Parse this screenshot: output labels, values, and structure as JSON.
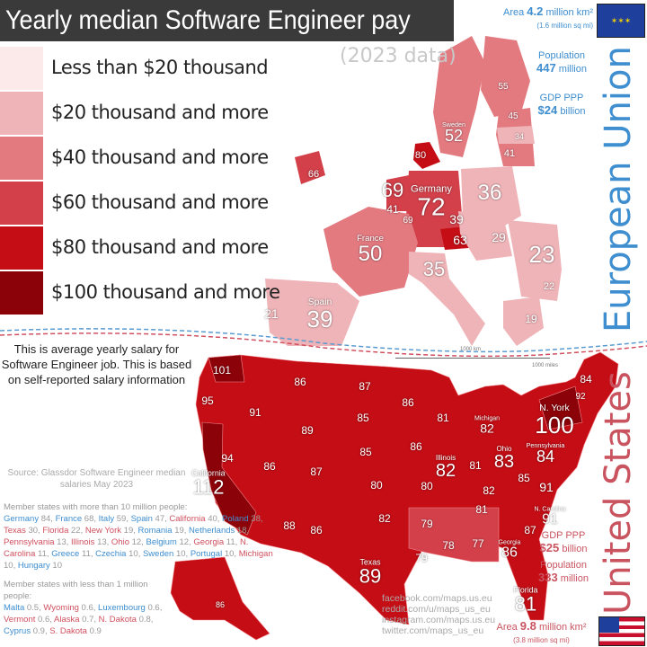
{
  "title": "Yearly median Software Engineer pay",
  "subtitle": "(2023 data)",
  "legend": [
    {
      "label": "Less than $20 thousand",
      "color": "#fce9ea"
    },
    {
      "label": "$20 thousand and more",
      "color": "#efb4b8"
    },
    {
      "label": "$40 thousand and more",
      "color": "#e27a80"
    },
    {
      "label": "$60 thousand and more",
      "color": "#d3404a"
    },
    {
      "label": "$80 thousand and more",
      "color": "#c50d15"
    },
    {
      "label": "$100 thousand and more",
      "color": "#8c0209"
    }
  ],
  "note": "This is average yearly salary for Software Engineer job. This is based on self-reported salary information",
  "source": "Source: Glassdor Software Engineer median salaries May 2023",
  "large_states": {
    "heading": "Member states with more than 10 million people:",
    "items": [
      {
        "name": "Germany",
        "value": "84",
        "side": "eu"
      },
      {
        "name": "France",
        "value": "68",
        "side": "eu"
      },
      {
        "name": "Italy",
        "value": "59",
        "side": "eu"
      },
      {
        "name": "Spain",
        "value": "47",
        "side": "eu"
      },
      {
        "name": "California",
        "value": "40",
        "side": "us"
      },
      {
        "name": "Poland",
        "value": "38",
        "side": "eu"
      },
      {
        "name": "Texas",
        "value": "30",
        "side": "us"
      },
      {
        "name": "Florida",
        "value": "22",
        "side": "us"
      },
      {
        "name": "New York",
        "value": "19",
        "side": "us"
      },
      {
        "name": "Romania",
        "value": "19",
        "side": "eu"
      },
      {
        "name": "Netherlands",
        "value": "18",
        "side": "eu"
      },
      {
        "name": "Pennsylvania",
        "value": "13",
        "side": "us"
      },
      {
        "name": "Illinois",
        "value": "13",
        "side": "us"
      },
      {
        "name": "Ohio",
        "value": "12",
        "side": "us"
      },
      {
        "name": "Belgium",
        "value": "12",
        "side": "eu"
      },
      {
        "name": "Georgia",
        "value": "11",
        "side": "us"
      },
      {
        "name": "N. Carolina",
        "value": "11",
        "side": "us"
      },
      {
        "name": "Greece",
        "value": "11",
        "side": "eu"
      },
      {
        "name": "Czechia",
        "value": "10",
        "side": "eu"
      },
      {
        "name": "Sweden",
        "value": "10",
        "side": "eu"
      },
      {
        "name": "Portugal",
        "value": "10",
        "side": "eu"
      },
      {
        "name": "Michigan",
        "value": "10",
        "side": "us"
      },
      {
        "name": "Hungary",
        "value": "10",
        "side": "eu"
      }
    ]
  },
  "small_states": {
    "heading": "Member states with less than 1 million people:",
    "items": [
      {
        "name": "Malta",
        "value": "0.5",
        "side": "eu"
      },
      {
        "name": "Wyoming",
        "value": "0.6",
        "side": "us"
      },
      {
        "name": "Luxembourg",
        "value": "0.6",
        "side": "eu"
      },
      {
        "name": "Vermont",
        "value": "0.6",
        "side": "us"
      },
      {
        "name": "Alaska",
        "value": "0.7",
        "side": "us"
      },
      {
        "name": "N. Dakota",
        "value": "0.8",
        "side": "us"
      },
      {
        "name": "Cyprus",
        "value": "0.9",
        "side": "eu"
      },
      {
        "name": "S. Dakota",
        "value": "0.9",
        "side": "us"
      }
    ]
  },
  "eu": {
    "name": "European Union",
    "area_label": "Area",
    "area_value": "4.2",
    "area_unit": "million km²",
    "area_sub": "(1.6 million sq mi)",
    "population_label": "Population",
    "population_value": "447",
    "population_unit": "million",
    "gdp_label": "GDP PPP",
    "gdp_value": "$24",
    "gdp_unit": "billion",
    "color": "#3e8ed0"
  },
  "us": {
    "name": "United States",
    "area_label": "Area",
    "area_value": "9.8",
    "area_unit": "million km²",
    "area_sub": "(3.8 million sq mi)",
    "population_label": "Population",
    "population_value": "333",
    "population_unit": "million",
    "gdp_label": "GDP PPP",
    "gdp_value": "$25",
    "gdp_unit": "billion",
    "color": "#c95460"
  },
  "scale": {
    "km": "1000 km",
    "miles": "1000 miles"
  },
  "social": [
    "facebook.com/maps.us.eu",
    "reddit.com/u/maps_us_eu",
    "instagram.com/maps.us.eu",
    "twitter.com/maps_us_eu"
  ],
  "eu_regions": [
    {
      "name": "",
      "value": "55"
    },
    {
      "name": "Sweden",
      "value": "52"
    },
    {
      "name": "",
      "value": "45"
    },
    {
      "name": "",
      "value": "34"
    },
    {
      "name": "",
      "value": "41"
    },
    {
      "name": "",
      "value": "80"
    },
    {
      "name": "",
      "value": "66"
    },
    {
      "name": "",
      "value": "69"
    },
    {
      "name": "Germany",
      "value": "72"
    },
    {
      "name": "",
      "value": "41"
    },
    {
      "name": "",
      "value": "69"
    },
    {
      "name": "",
      "value": "36"
    },
    {
      "name": "France",
      "value": "50"
    },
    {
      "name": "",
      "value": "39"
    },
    {
      "name": "",
      "value": "63"
    },
    {
      "name": "",
      "value": "29"
    },
    {
      "name": "",
      "value": "23"
    },
    {
      "name": "",
      "value": "35"
    },
    {
      "name": "Spain",
      "value": "39"
    },
    {
      "name": "",
      "value": "21"
    },
    {
      "name": "",
      "value": "19"
    },
    {
      "name": "",
      "value": "22"
    }
  ],
  "us_regions": [
    {
      "name": "",
      "value": "101"
    },
    {
      "name": "",
      "value": "95"
    },
    {
      "name": "",
      "value": "91"
    },
    {
      "name": "",
      "value": "86"
    },
    {
      "name": "",
      "value": "87"
    },
    {
      "name": "",
      "value": "86"
    },
    {
      "name": "",
      "value": "81"
    },
    {
      "name": "",
      "value": "89"
    },
    {
      "name": "",
      "value": "85"
    },
    {
      "name": "",
      "value": "85"
    },
    {
      "name": "",
      "value": "86"
    },
    {
      "name": "Michigan",
      "value": "82"
    },
    {
      "name": "N. York",
      "value": "100"
    },
    {
      "name": "",
      "value": "94"
    },
    {
      "name": "",
      "value": "86"
    },
    {
      "name": "",
      "value": "87"
    },
    {
      "name": "",
      "value": "80"
    },
    {
      "name": "",
      "value": "80"
    },
    {
      "name": "Illinois",
      "value": "82"
    },
    {
      "name": "",
      "value": "81"
    },
    {
      "name": "Ohio",
      "value": "83"
    },
    {
      "name": "Pennsylvania",
      "value": "84"
    },
    {
      "name": "California",
      "value": "112"
    },
    {
      "name": "",
      "value": "88"
    },
    {
      "name": "",
      "value": "86"
    },
    {
      "name": "",
      "value": "82"
    },
    {
      "name": "",
      "value": "79"
    },
    {
      "name": "",
      "value": "82"
    },
    {
      "name": "",
      "value": "85"
    },
    {
      "name": "",
      "value": "91"
    },
    {
      "name": "",
      "value": "81"
    },
    {
      "name": "N. Carolina",
      "value": "91"
    },
    {
      "name": "",
      "value": "78"
    },
    {
      "name": "",
      "value": "77"
    },
    {
      "name": "",
      "value": "79"
    },
    {
      "name": "Georgia",
      "value": "86"
    },
    {
      "name": "",
      "value": "87"
    },
    {
      "name": "Texas",
      "value": "89"
    },
    {
      "name": "Florida",
      "value": "81"
    },
    {
      "name": "",
      "value": "86"
    },
    {
      "name": "",
      "value": "84"
    },
    {
      "name": "",
      "value": "92"
    }
  ]
}
